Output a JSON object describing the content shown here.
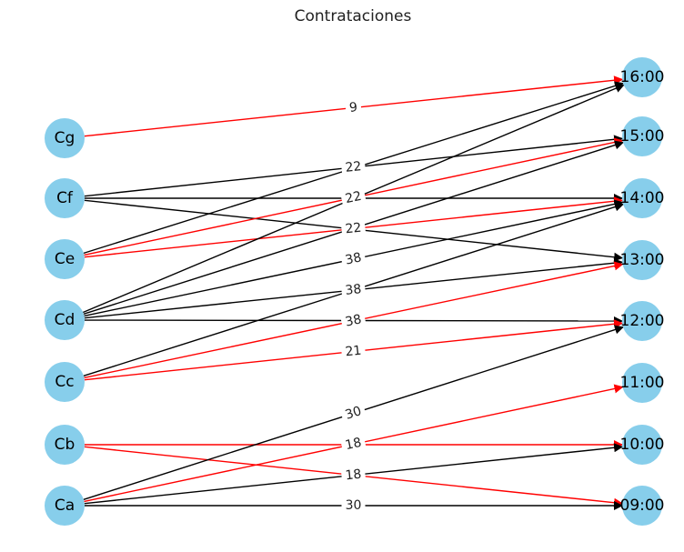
{
  "title": "Contrataciones",
  "colors": {
    "node_fill": "#87ceeb",
    "edge_default": "#000000",
    "edge_highlight": "#ff0000",
    "label_bg": "#ffffff"
  },
  "sources": [
    "Cg",
    "Cf",
    "Ce",
    "Cd",
    "Cc",
    "Cb",
    "Ca"
  ],
  "targets": [
    "16:00",
    "15:00",
    "14:00",
    "13:00",
    "12:00",
    "11:00",
    "10:00",
    "09:00"
  ],
  "edges": [
    {
      "from": "Cg",
      "to": "16:00",
      "color": "red"
    },
    {
      "from": "Cf",
      "to": "15:00",
      "color": "black"
    },
    {
      "from": "Cf",
      "to": "14:00",
      "color": "black"
    },
    {
      "from": "Cf",
      "to": "13:00",
      "color": "black"
    },
    {
      "from": "Ce",
      "to": "16:00",
      "color": "black"
    },
    {
      "from": "Ce",
      "to": "15:00",
      "color": "red"
    },
    {
      "from": "Ce",
      "to": "14:00",
      "color": "red"
    },
    {
      "from": "Cd",
      "to": "16:00",
      "color": "black"
    },
    {
      "from": "Cd",
      "to": "15:00",
      "color": "black"
    },
    {
      "from": "Cd",
      "to": "14:00",
      "color": "black"
    },
    {
      "from": "Cd",
      "to": "13:00",
      "color": "black"
    },
    {
      "from": "Cd",
      "to": "12:00",
      "color": "black"
    },
    {
      "from": "Cc",
      "to": "14:00",
      "color": "black"
    },
    {
      "from": "Cc",
      "to": "13:00",
      "color": "red"
    },
    {
      "from": "Cc",
      "to": "12:00",
      "color": "red"
    },
    {
      "from": "Cb",
      "to": "10:00",
      "color": "red"
    },
    {
      "from": "Cb",
      "to": "09:00",
      "color": "red"
    },
    {
      "from": "Ca",
      "to": "12:00",
      "color": "black"
    },
    {
      "from": "Ca",
      "to": "11:00",
      "color": "red"
    },
    {
      "from": "Ca",
      "to": "10:00",
      "color": "black"
    },
    {
      "from": "Ca",
      "to": "09:00",
      "color": "black"
    }
  ],
  "edge_labels": [
    {
      "text": "9",
      "from": "Cg",
      "to": "16:00"
    },
    {
      "text": "22",
      "from": "Cf",
      "to": "15:00"
    },
    {
      "text": "22",
      "from": "Ce",
      "to": "15:00"
    },
    {
      "text": "22",
      "from": "Ce",
      "to": "14:00"
    },
    {
      "text": "38",
      "from": "Cd",
      "to": "14:00"
    },
    {
      "text": "38",
      "from": "Cd",
      "to": "13:00"
    },
    {
      "text": "38",
      "from": "Cc",
      "to": "13:00"
    },
    {
      "text": "21",
      "from": "Cc",
      "to": "12:00"
    },
    {
      "text": "30",
      "from": "Ca",
      "to": "12:00"
    },
    {
      "text": "18",
      "from": "Ca",
      "to": "11:00"
    },
    {
      "text": "18",
      "from": "Ca",
      "to": "10:00"
    },
    {
      "text": "30",
      "from": "Ca",
      "to": "09:00"
    }
  ]
}
